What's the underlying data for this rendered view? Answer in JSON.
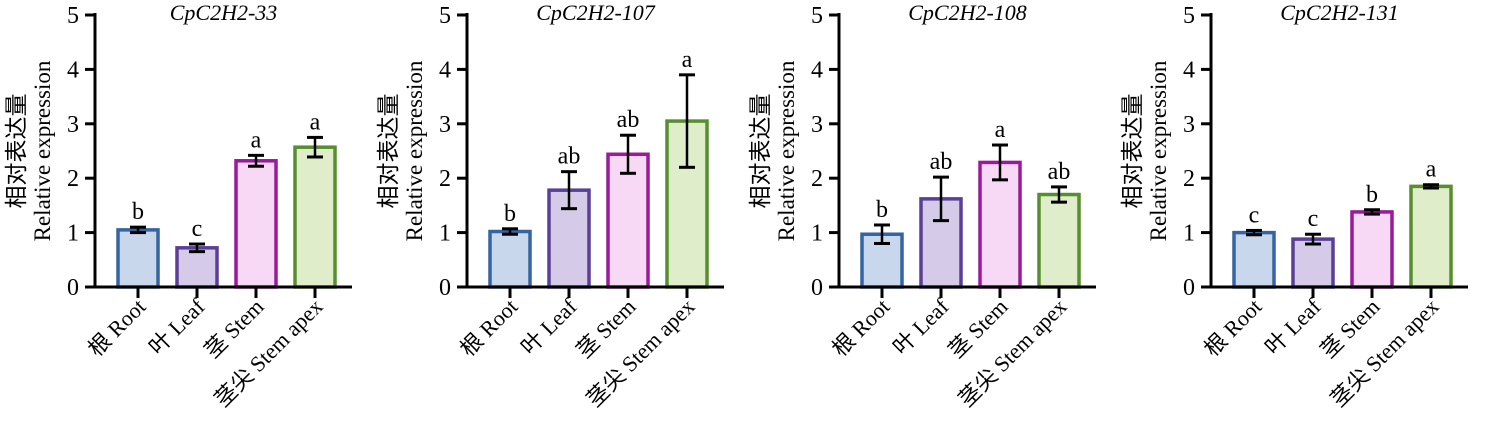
{
  "figure": {
    "ylabel_cn": "相对表达量",
    "ylabel_en": "Relative expression",
    "axis_color": "#000000",
    "bar_fill_colors": [
      "#c9d7ec",
      "#d5cbe9",
      "#f7d9f6",
      "#dfedca"
    ],
    "bar_edge_colors": [
      "#3465a0",
      "#5b3f96",
      "#991a9b",
      "#578e2e"
    ]
  },
  "chart_data": [
    {
      "type": "bar",
      "title": "CpC2H2-33",
      "categories": [
        "根 Root",
        "叶 Leaf",
        "茎 Stem",
        "茎尖 Stem apex"
      ],
      "values": [
        1.05,
        0.72,
        2.32,
        2.57
      ],
      "errors": [
        0.05,
        0.07,
        0.1,
        0.18
      ],
      "sig_letters": [
        "b",
        "c",
        "a",
        "a"
      ],
      "xlabel": "",
      "ylabel": "相对表达量 Relative expression",
      "ylim": [
        0,
        5
      ],
      "yticks": [
        0,
        1,
        2,
        3,
        4,
        5
      ],
      "grid": false,
      "legend": "none"
    },
    {
      "type": "bar",
      "title": "CpC2H2-107",
      "categories": [
        "根 Root",
        "叶 Leaf",
        "茎 Stem",
        "茎尖 Stem apex"
      ],
      "values": [
        1.02,
        1.78,
        2.44,
        3.05
      ],
      "errors": [
        0.05,
        0.34,
        0.35,
        0.85
      ],
      "sig_letters": [
        "b",
        "ab",
        "ab",
        "a"
      ],
      "xlabel": "",
      "ylabel": "相对表达量 Relative expression",
      "ylim": [
        0,
        5
      ],
      "yticks": [
        0,
        1,
        2,
        3,
        4,
        5
      ],
      "grid": false,
      "legend": "none"
    },
    {
      "type": "bar",
      "title": "CpC2H2-108",
      "categories": [
        "根 Root",
        "叶 Leaf",
        "茎 Stem",
        "茎尖 Stem apex"
      ],
      "values": [
        0.97,
        1.62,
        2.29,
        1.7
      ],
      "errors": [
        0.17,
        0.4,
        0.32,
        0.14
      ],
      "sig_letters": [
        "b",
        "ab",
        "a",
        "ab"
      ],
      "xlabel": "",
      "ylabel": "相对表达量 Relative expression",
      "ylim": [
        0,
        5
      ],
      "yticks": [
        0,
        1,
        2,
        3,
        4,
        5
      ],
      "grid": false,
      "legend": "none"
    },
    {
      "type": "bar",
      "title": "CpC2H2-131",
      "categories": [
        "根 Root",
        "叶 Leaf",
        "茎 Stem",
        "茎尖 Stem apex"
      ],
      "values": [
        1.0,
        0.88,
        1.38,
        1.85
      ],
      "errors": [
        0.04,
        0.09,
        0.04,
        0.03
      ],
      "sig_letters": [
        "c",
        "c",
        "b",
        "a"
      ],
      "xlabel": "",
      "ylabel": "相对表达量 Relative expression",
      "ylim": [
        0,
        5
      ],
      "yticks": [
        0,
        1,
        2,
        3,
        4,
        5
      ],
      "grid": false,
      "legend": "none"
    }
  ]
}
